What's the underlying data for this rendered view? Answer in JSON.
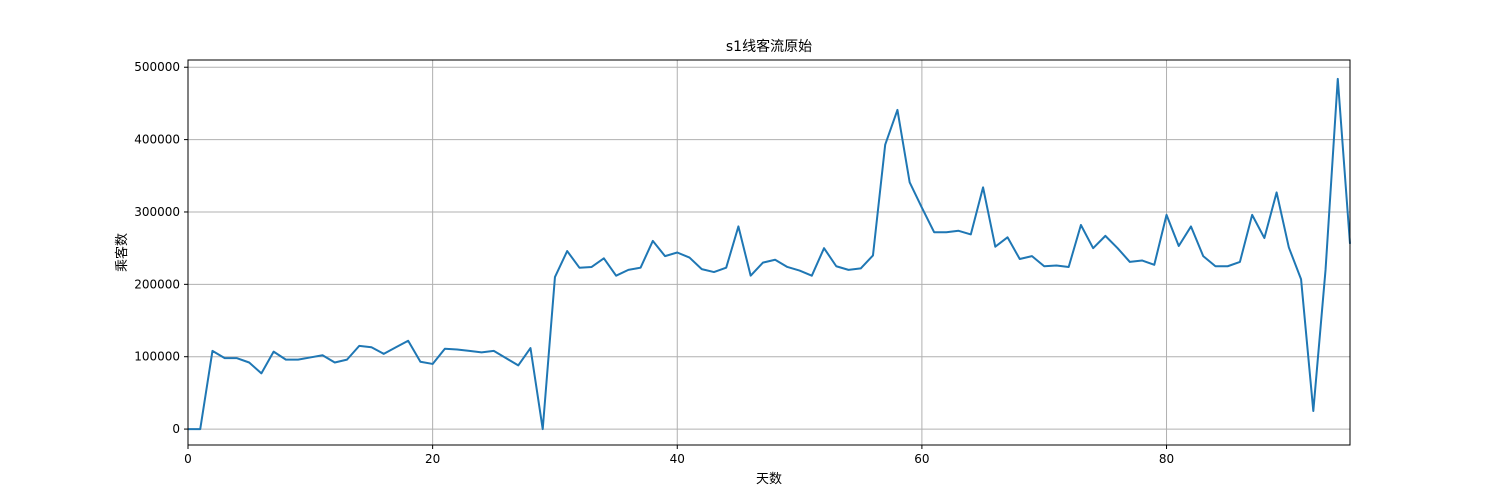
{
  "chart_data": {
    "type": "line",
    "title": "s1线客流原始",
    "xlabel": "天数",
    "ylabel": "乘客数",
    "xlim": [
      0,
      95
    ],
    "ylim": [
      -22000,
      510000
    ],
    "xticks": [
      0,
      20,
      40,
      60,
      80
    ],
    "yticks": [
      0,
      100000,
      200000,
      300000,
      400000,
      500000
    ],
    "grid": true,
    "series_color": "#1f77b4",
    "series": [
      {
        "x": [
          0,
          1,
          2,
          3,
          4,
          5,
          6,
          7,
          8,
          9,
          10,
          11,
          12,
          13,
          14,
          15,
          16,
          17,
          18,
          19,
          20,
          21,
          22,
          23,
          24,
          25,
          26,
          27,
          28,
          29,
          30,
          31,
          32,
          33,
          34,
          35,
          36,
          37,
          38,
          39,
          40,
          41,
          42,
          43,
          44,
          45,
          46,
          47,
          48,
          49,
          50,
          51,
          52,
          53,
          54,
          55,
          56,
          57,
          58,
          59,
          60,
          61,
          62,
          63,
          64,
          65,
          66,
          67,
          68,
          69,
          70,
          71,
          72,
          73,
          74,
          75,
          76,
          77,
          78,
          79,
          80,
          81,
          82,
          83,
          84,
          85,
          86,
          87,
          88,
          89,
          90,
          91,
          92,
          93,
          94,
          95
        ],
        "values": [
          0,
          0,
          108000,
          98000,
          98000,
          92000,
          77000,
          107000,
          96000,
          96000,
          99000,
          102000,
          92000,
          96000,
          115000,
          113000,
          104000,
          113000,
          122000,
          93000,
          90000,
          111000,
          110000,
          108000,
          106000,
          108000,
          98000,
          88000,
          112000,
          0,
          210000,
          246000,
          223000,
          224000,
          236000,
          212000,
          220000,
          223000,
          260000,
          239000,
          244000,
          237000,
          221000,
          217000,
          223000,
          280000,
          212000,
          230000,
          234000,
          224000,
          219000,
          212000,
          250000,
          225000,
          220000,
          222000,
          240000,
          393000,
          441000,
          341000,
          306000,
          272000,
          272000,
          274000,
          269000,
          334000,
          252000,
          265000,
          235000,
          239000,
          225000,
          226000,
          224000,
          282000,
          250000,
          267000,
          250000,
          231000,
          233000,
          227000,
          296000,
          253000,
          280000,
          239000,
          225000,
          225000,
          231000,
          296000,
          264000,
          327000,
          251000,
          207000,
          25000,
          220000,
          484000,
          256000
        ]
      }
    ]
  }
}
